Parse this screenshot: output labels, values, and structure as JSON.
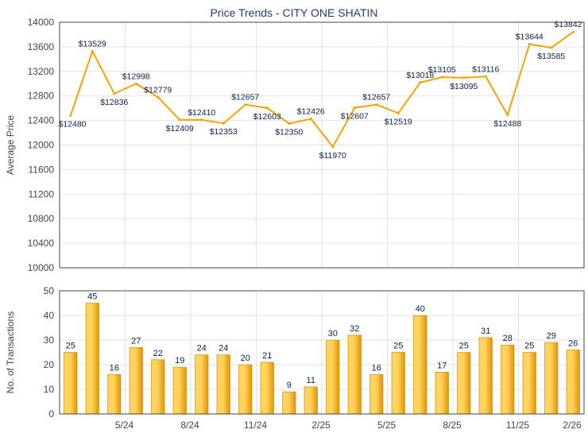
{
  "title": "Price Trends - CITY ONE SHATIN",
  "colors": {
    "line": "#f5a300",
    "bar_light": "#ffd35c",
    "bar_dark": "#e39400",
    "bar_edge": "#c88200",
    "grid": "#e2e2e2",
    "axis": "#444444",
    "title": "#1f3e73",
    "label": "#0a1f4d"
  },
  "chart_data": [
    {
      "type": "line",
      "ylabel": "Average Price",
      "ylim": [
        10000,
        14000
      ],
      "yticks": [
        10000,
        10400,
        10800,
        11200,
        11600,
        12000,
        12400,
        12800,
        13200,
        13600,
        14000
      ],
      "grid": true,
      "values": [
        12480,
        13529,
        12836,
        12998,
        12779,
        12409,
        12410,
        12353,
        12657,
        12603,
        12350,
        12426,
        11970,
        12607,
        12657,
        12519,
        13018,
        13105,
        13095,
        13116,
        12488,
        13644,
        13585,
        13842
      ],
      "data_labels": [
        "$12480",
        "$13529",
        "$12836",
        "$12998",
        "$12779",
        "$12409",
        "$12410",
        "$12353",
        "$12657",
        "$12603",
        "$12350",
        "$12426",
        "$11970",
        "$12607",
        "$12657",
        "$12519",
        "$13018",
        "$13105",
        "$13095",
        "$13116",
        "$12488",
        "$13644",
        "$13585",
        "$13842"
      ]
    },
    {
      "type": "bar",
      "ylabel": "No. of Transactions",
      "ylim": [
        0,
        50
      ],
      "yticks": [
        0,
        10,
        20,
        30,
        40,
        50
      ],
      "grid": true,
      "values": [
        25,
        45,
        16,
        27,
        22,
        19,
        24,
        24,
        20,
        21,
        9,
        11,
        30,
        32,
        16,
        25,
        40,
        17,
        25,
        31,
        28,
        25,
        29,
        26
      ],
      "x_tick_labels": [
        {
          "after": 2,
          "label": "5/24"
        },
        {
          "after": 5,
          "label": "8/24"
        },
        {
          "after": 8,
          "label": "11/24"
        },
        {
          "after": 11,
          "label": "2/25"
        },
        {
          "after": 14,
          "label": "5/25"
        },
        {
          "after": 17,
          "label": "8/25"
        },
        {
          "after": 20,
          "label": "11/25"
        },
        {
          "after": 23,
          "label": "2/26"
        }
      ]
    }
  ]
}
